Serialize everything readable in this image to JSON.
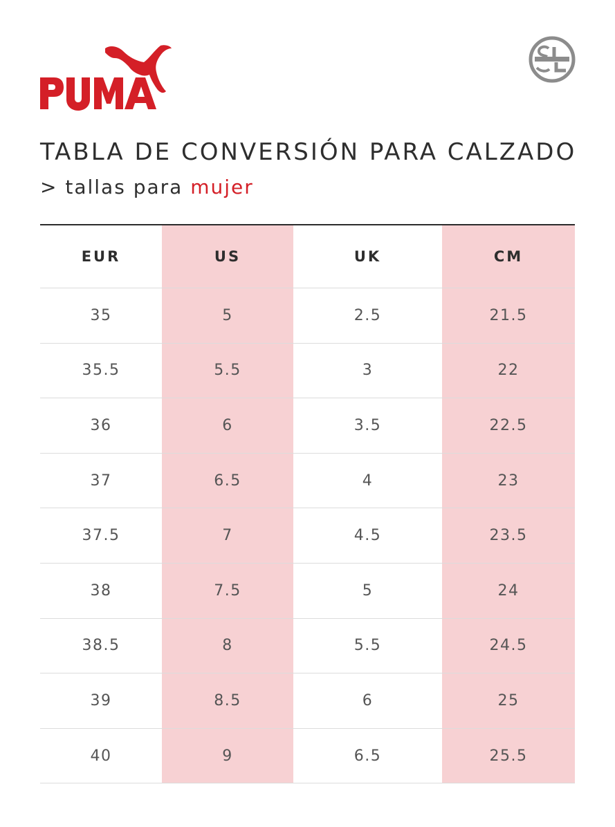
{
  "brand": {
    "logo_text": "PUMA",
    "badge_text": "SL",
    "accent_color": "#d41f27"
  },
  "title": "TABLA DE CONVERSIÓN PARA CALZADO",
  "subtitle": {
    "prefix": "> tallas para ",
    "accent": "mujer"
  },
  "table": {
    "headers": [
      "EUR",
      "US",
      "UK",
      "CM"
    ],
    "rows": [
      [
        "35",
        "5",
        "2.5",
        "21.5"
      ],
      [
        "35.5",
        "5.5",
        "3",
        "22"
      ],
      [
        "36",
        "6",
        "3.5",
        "22.5"
      ],
      [
        "37",
        "6.5",
        "4",
        "23"
      ],
      [
        "37.5",
        "7",
        "4.5",
        "23.5"
      ],
      [
        "38",
        "7.5",
        "5",
        "24"
      ],
      [
        "38.5",
        "8",
        "5.5",
        "24.5"
      ],
      [
        "39",
        "8.5",
        "6",
        "25"
      ],
      [
        "40",
        "9",
        "6.5",
        "25.5"
      ]
    ],
    "highlight_color": "#f7d1d3"
  }
}
